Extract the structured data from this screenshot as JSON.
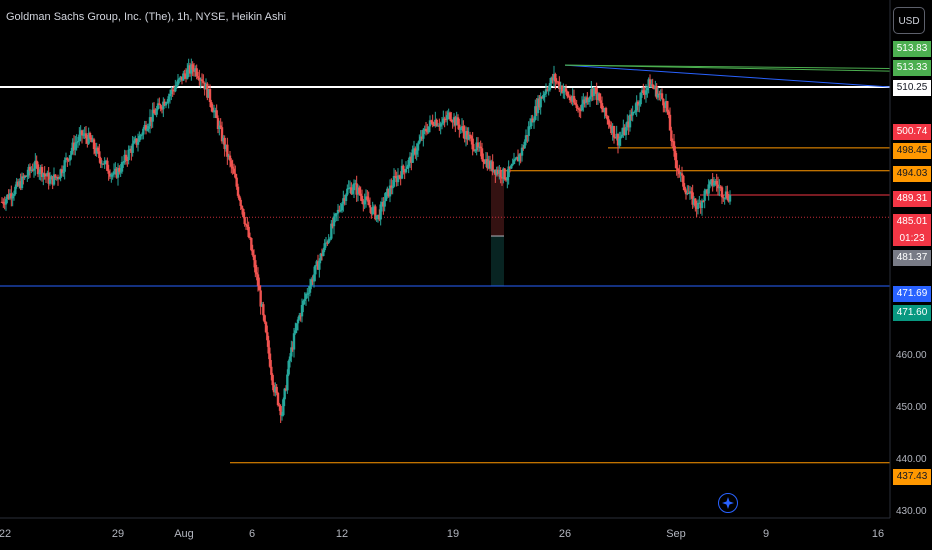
{
  "header": {
    "title": "Goldman Sachs Group, Inc. (The), 1h, NYSE, Heikin Ashi",
    "currency": "USD"
  },
  "colors": {
    "up": "#26a69a",
    "down": "#ef5350",
    "orange": "#ff9800",
    "blue": "#2962ff",
    "white": "#ffffff",
    "green_line": "#4caf50",
    "red_line": "#f23645"
  },
  "price_axis": {
    "ticks": [
      "460.00",
      "450.00",
      "440.00",
      "430.00"
    ],
    "labels": [
      {
        "value": "513.83",
        "bg": "#4caf50",
        "fg": "#ffffff"
      },
      {
        "value": "513.33",
        "bg": "#4caf50",
        "fg": "#ffffff"
      },
      {
        "value": "510.25",
        "bg": "#ffffff",
        "fg": "#131722"
      },
      {
        "value": "500.74",
        "bg": "#f23645",
        "fg": "#ffffff"
      },
      {
        "value": "498.45",
        "bg": "#ff9800",
        "fg": "#131722"
      },
      {
        "value": "494.03",
        "bg": "#ff9800",
        "fg": "#131722"
      },
      {
        "value": "489.31",
        "bg": "#f23645",
        "fg": "#ffffff"
      },
      {
        "value": "485.01",
        "bg": "#f23645",
        "fg": "#ffffff"
      },
      {
        "value": "481.37",
        "bg": "#787b86",
        "fg": "#ffffff"
      },
      {
        "value": "471.69",
        "bg": "#2962ff",
        "fg": "#ffffff"
      },
      {
        "value": "471.60",
        "bg": "#089981",
        "fg": "#ffffff"
      },
      {
        "value": "437.43",
        "bg": "#ff9800",
        "fg": "#131722"
      }
    ],
    "countdown": "01:23"
  },
  "time_axis": {
    "ticks": [
      "22",
      "29",
      "Aug",
      "6",
      "12",
      "19",
      "26",
      "Sep",
      "9",
      "16"
    ]
  },
  "chart_data": {
    "type": "candlestick",
    "style": "Heikin Ashi",
    "interval": "1h",
    "ylim": [
      430,
      520
    ],
    "horizontal_lines": [
      {
        "price": 510.25,
        "color": "white"
      },
      {
        "price": 498.45,
        "color": "orange"
      },
      {
        "price": 494.03,
        "color": "orange"
      },
      {
        "price": 489.31,
        "color": "red"
      },
      {
        "price": 471.69,
        "color": "blue"
      },
      {
        "price": 437.43,
        "color": "orange"
      },
      {
        "price": 485.01,
        "color": "red",
        "style": "dotted"
      }
    ],
    "trend_lines": [
      {
        "from": 514.5,
        "to": 510.25,
        "color": "blue"
      },
      {
        "from": 514.5,
        "to": 513.83,
        "color": "green"
      },
      {
        "from": 514.5,
        "to": 513.33,
        "color": "green"
      }
    ],
    "price_path": [
      488.0,
      489.5,
      491,
      493,
      495,
      494,
      492,
      493,
      496,
      499,
      501,
      500,
      497,
      495,
      493,
      495,
      498,
      500,
      503,
      505,
      507,
      509,
      511,
      513,
      514,
      512,
      508,
      503,
      498,
      493,
      487,
      480,
      472,
      462,
      452,
      447,
      458,
      465,
      470,
      474,
      478,
      482,
      486,
      490,
      491,
      489,
      487,
      485,
      489,
      492,
      494,
      496,
      499,
      502,
      504,
      503,
      505,
      503,
      501,
      499,
      497,
      495,
      494,
      493,
      495,
      498,
      503,
      507,
      510,
      512,
      510,
      508,
      506,
      508,
      510,
      506,
      503,
      500,
      502,
      506,
      509,
      511,
      509,
      507,
      497,
      492,
      489,
      487,
      490,
      492,
      490,
      489
    ]
  }
}
